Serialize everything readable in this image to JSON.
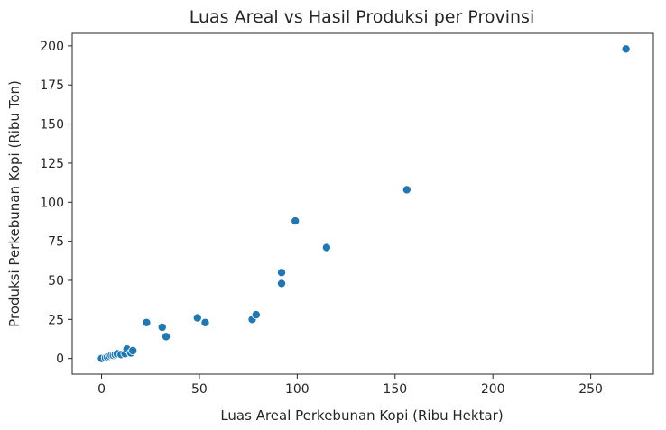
{
  "chart_data": {
    "type": "scatter",
    "title": "Luas Areal vs Hasil Produksi per Provinsi",
    "xlabel": "Luas Areal Perkebunan Kopi (Ribu Hektar)",
    "ylabel": "Produksi Perkebunan Kopi (Ribu Ton)",
    "xlim": [
      -15,
      282
    ],
    "ylim": [
      -10,
      208
    ],
    "xticks": [
      "0",
      "50",
      "100",
      "150",
      "200",
      "250"
    ],
    "yticks": [
      "0",
      "25",
      "50",
      "75",
      "100",
      "125",
      "150",
      "175",
      "200"
    ],
    "grid": false,
    "marker_color": "#1f77b4",
    "points": [
      {
        "x": 0,
        "y": 0
      },
      {
        "x": 2,
        "y": 0.5
      },
      {
        "x": 3,
        "y": 1
      },
      {
        "x": 4,
        "y": 1.5
      },
      {
        "x": 5,
        "y": 2
      },
      {
        "x": 6,
        "y": 2
      },
      {
        "x": 7,
        "y": 2.5
      },
      {
        "x": 8,
        "y": 3
      },
      {
        "x": 10,
        "y": 2.5
      },
      {
        "x": 12,
        "y": 3
      },
      {
        "x": 13,
        "y": 6
      },
      {
        "x": 15,
        "y": 3.5
      },
      {
        "x": 16,
        "y": 5
      },
      {
        "x": 23,
        "y": 23
      },
      {
        "x": 31,
        "y": 20
      },
      {
        "x": 33,
        "y": 14
      },
      {
        "x": 49,
        "y": 26
      },
      {
        "x": 53,
        "y": 23
      },
      {
        "x": 77,
        "y": 25
      },
      {
        "x": 79,
        "y": 28
      },
      {
        "x": 92,
        "y": 48
      },
      {
        "x": 92,
        "y": 55
      },
      {
        "x": 99,
        "y": 88
      },
      {
        "x": 115,
        "y": 71
      },
      {
        "x": 156,
        "y": 108
      },
      {
        "x": 268,
        "y": 198
      }
    ]
  }
}
